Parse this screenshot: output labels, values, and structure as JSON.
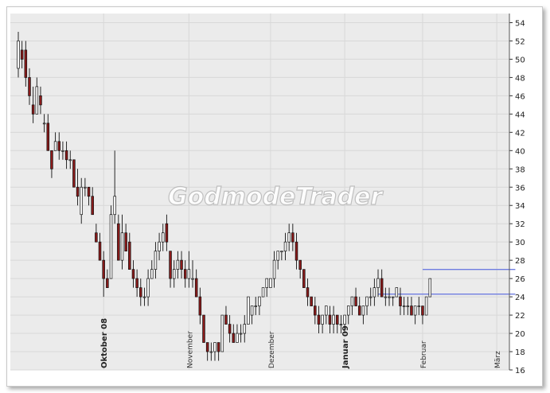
{
  "watermark": "GodmodeTrader",
  "colors": {
    "up": "#ffffff",
    "down": "#8b1a1a",
    "wick": "#111111",
    "trendline": "#6f7de0",
    "grid": "#d8d8d8",
    "plot_bg": "#ebebeb"
  },
  "chart_data": {
    "type": "candlestick",
    "ylim": [
      16,
      55
    ],
    "y_ticks": [
      16,
      18,
      20,
      22,
      24,
      26,
      28,
      30,
      32,
      34,
      36,
      38,
      40,
      42,
      44,
      46,
      48,
      50,
      52,
      54
    ],
    "grid": true,
    "x_labels": [
      {
        "label": "Oktober 08",
        "index": 23,
        "bold": true
      },
      {
        "label": "November",
        "index": 46,
        "bold": false
      },
      {
        "label": "Dezember",
        "index": 68,
        "bold": false
      },
      {
        "label": "Januar 09",
        "index": 88,
        "bold": true
      },
      {
        "label": "Februar",
        "index": 109,
        "bold": false
      },
      {
        "label": "März",
        "index": 129,
        "bold": false
      }
    ],
    "candles": [
      [
        49,
        53,
        48,
        52
      ],
      [
        51,
        52,
        49,
        50
      ],
      [
        51,
        52,
        47,
        48
      ],
      [
        48,
        49,
        45,
        46
      ],
      [
        45,
        47,
        43,
        44
      ],
      [
        44,
        48,
        44,
        47
      ],
      [
        46,
        47,
        44,
        45
      ],
      [
        43,
        44,
        42,
        43
      ],
      [
        43,
        44,
        40,
        40
      ],
      [
        40,
        40,
        37,
        38
      ],
      [
        40,
        42,
        40,
        41
      ],
      [
        41,
        42,
        39,
        40
      ],
      [
        40,
        41,
        39,
        40
      ],
      [
        40,
        41,
        38,
        39
      ],
      [
        39,
        40,
        38,
        39
      ],
      [
        39,
        39,
        36,
        36
      ],
      [
        36,
        38,
        34,
        35
      ],
      [
        33,
        37,
        32,
        36
      ],
      [
        36,
        37,
        35,
        36
      ],
      [
        36,
        36,
        34,
        35
      ],
      [
        35,
        36,
        33,
        33
      ],
      [
        31,
        32,
        30,
        30
      ],
      [
        30,
        31,
        28,
        28
      ],
      [
        28,
        29,
        24,
        26
      ],
      [
        26,
        27,
        25,
        25
      ],
      [
        26,
        34,
        26,
        33
      ],
      [
        33,
        40,
        32,
        35
      ],
      [
        32,
        33,
        28,
        28
      ],
      [
        28,
        33,
        27,
        31
      ],
      [
        31,
        32,
        29,
        29
      ],
      [
        30,
        31,
        27,
        27
      ],
      [
        27,
        28,
        25,
        26
      ],
      [
        26,
        27,
        24,
        25
      ],
      [
        25,
        26,
        23,
        24
      ],
      [
        24,
        25,
        23,
        24
      ],
      [
        24,
        27,
        23,
        26
      ],
      [
        26,
        28,
        26,
        27
      ],
      [
        27,
        30,
        26,
        29
      ],
      [
        29,
        31,
        28,
        30
      ],
      [
        30,
        32,
        29,
        31
      ],
      [
        32,
        33,
        29,
        30
      ],
      [
        29,
        29,
        25,
        26
      ],
      [
        26,
        28,
        25,
        27
      ],
      [
        27,
        29,
        26,
        28
      ],
      [
        28,
        29,
        26,
        27
      ],
      [
        27,
        28,
        25,
        26
      ],
      [
        26,
        29,
        25,
        27
      ],
      [
        26,
        28,
        25,
        26
      ],
      [
        26,
        27,
        24,
        24
      ],
      [
        24,
        25,
        21,
        22
      ],
      [
        22,
        22,
        19,
        19
      ],
      [
        19,
        19,
        17,
        18
      ],
      [
        18,
        19,
        17,
        18
      ],
      [
        18,
        19,
        17,
        19
      ],
      [
        19,
        19,
        17,
        18
      ],
      [
        18,
        22,
        18,
        22
      ],
      [
        22,
        23,
        21,
        21
      ],
      [
        21,
        22,
        19,
        20
      ],
      [
        20,
        21,
        19,
        19
      ],
      [
        19,
        21,
        19,
        20
      ],
      [
        20,
        21,
        19,
        20
      ],
      [
        20,
        22,
        19,
        21
      ],
      [
        21,
        24,
        21,
        24
      ],
      [
        22,
        23,
        21,
        23
      ],
      [
        23,
        24,
        22,
        23
      ],
      [
        23,
        24,
        22,
        24
      ],
      [
        24,
        25,
        24,
        25
      ],
      [
        25,
        26,
        24,
        26
      ],
      [
        25,
        26,
        25,
        26
      ],
      [
        26,
        29,
        25,
        28
      ],
      [
        28,
        29,
        27,
        29
      ],
      [
        29,
        29,
        28,
        29
      ],
      [
        29,
        31,
        28,
        30
      ],
      [
        30,
        32,
        29,
        31
      ],
      [
        31,
        32,
        29,
        30
      ],
      [
        30,
        31,
        27,
        28
      ],
      [
        28,
        28,
        26,
        27
      ],
      [
        27,
        27,
        25,
        25
      ],
      [
        25,
        26,
        23,
        24
      ],
      [
        24,
        24,
        23,
        23
      ],
      [
        23,
        24,
        21,
        22
      ],
      [
        22,
        23,
        20,
        21
      ],
      [
        21,
        22,
        20,
        22
      ],
      [
        22,
        23,
        21,
        23
      ],
      [
        22,
        23,
        20,
        21
      ],
      [
        21,
        23,
        20,
        22
      ],
      [
        22,
        22,
        20,
        21
      ],
      [
        21,
        22,
        20,
        21
      ],
      [
        21,
        22,
        20,
        22
      ],
      [
        22,
        23,
        21,
        23
      ],
      [
        23,
        24,
        22,
        24
      ],
      [
        24,
        25,
        23,
        23
      ],
      [
        23,
        24,
        22,
        22
      ],
      [
        22,
        23,
        21,
        23
      ],
      [
        23,
        24,
        22,
        24
      ],
      [
        24,
        25,
        23,
        24
      ],
      [
        24,
        26,
        23,
        25
      ],
      [
        25,
        27,
        24,
        26
      ],
      [
        26,
        27,
        24,
        24
      ],
      [
        24,
        25,
        23,
        24
      ],
      [
        24,
        25,
        23,
        24
      ],
      [
        24,
        24,
        23,
        24
      ],
      [
        24,
        25,
        24,
        25
      ],
      [
        24,
        25,
        22,
        23
      ],
      [
        23,
        24,
        22,
        23
      ],
      [
        23,
        24,
        22,
        23
      ],
      [
        23,
        24,
        22,
        22
      ],
      [
        22,
        23,
        21,
        23
      ],
      [
        23,
        24,
        22,
        23
      ],
      [
        23,
        23,
        21,
        22
      ],
      [
        22,
        24,
        22,
        24
      ],
      [
        24,
        26,
        24,
        26
      ]
    ],
    "trendlines": [
      {
        "from_index": 97,
        "to_index": 134,
        "value": 24.3
      },
      {
        "from_index": 109,
        "to_index": 134,
        "value": 27.0
      }
    ]
  }
}
